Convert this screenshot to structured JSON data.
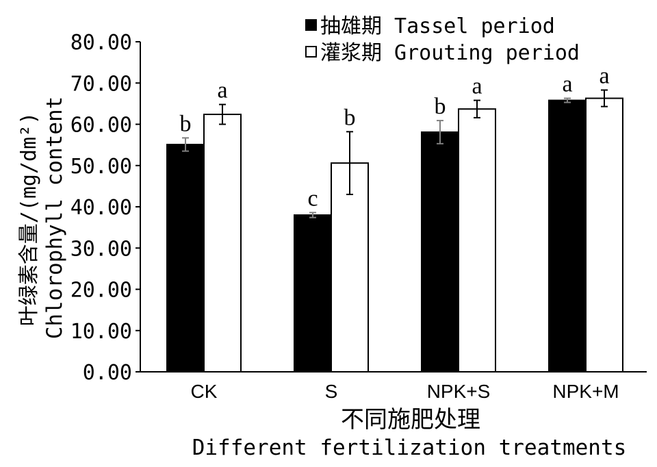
{
  "chart_data": {
    "type": "bar",
    "categories": [
      "CK",
      "S",
      "NPK+S",
      "NPK+M"
    ],
    "series": [
      {
        "name": "抽雄期 Tassel period",
        "values": [
          55.1,
          38.0,
          58.1,
          65.8
        ],
        "errors": [
          1.6,
          0.6,
          2.8,
          0.5
        ],
        "letters": [
          "b",
          "c",
          "b",
          "a"
        ],
        "color": "#000000",
        "error_bar_color": "#808080"
      },
      {
        "name": "灌浆期 Grouting period",
        "values": [
          62.4,
          50.6,
          63.7,
          66.3
        ],
        "errors": [
          2.4,
          7.6,
          2.1,
          2.0
        ],
        "letters": [
          "a",
          "b",
          "a",
          "a"
        ],
        "color": "#ffffff",
        "error_bar_color": "#000000"
      }
    ],
    "xlabel": [
      "不同施肥处理",
      "Different fertilization treatments"
    ],
    "ylabel": [
      "叶绿素含量/(mg/dm²)",
      "Chlorophyll content"
    ],
    "ylim": [
      0,
      80
    ],
    "yticks": [
      0,
      10,
      20,
      30,
      40,
      50,
      60,
      70,
      80
    ],
    "ytick_labels": [
      "0.00",
      "10.00",
      "20.00",
      "30.00",
      "40.00",
      "50.00",
      "60.00",
      "70.00",
      "80.00"
    ],
    "grid": false,
    "legend": "top-right"
  }
}
